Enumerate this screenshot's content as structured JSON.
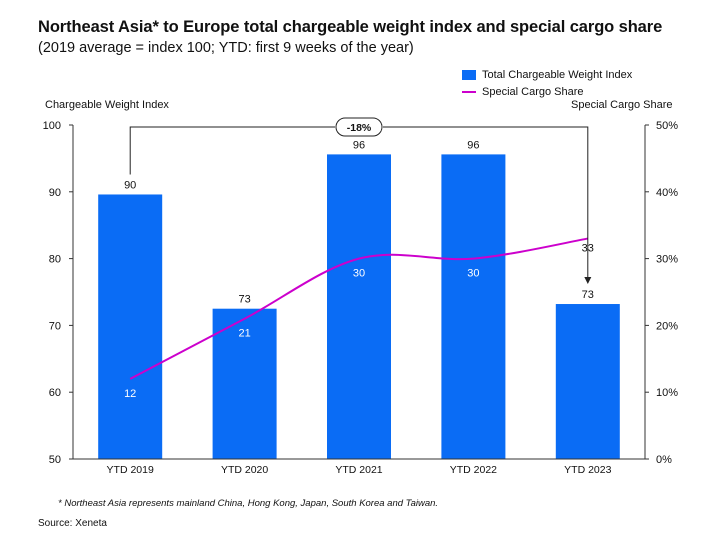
{
  "title": "Northeast Asia* to Europe total chargeable weight index and special cargo share",
  "subtitle": "(2019 average = index 100; YTD: first 9 weeks of the year)",
  "footnote": "* Northeast Asia represents mainland China, Hong Kong, Japan, South Korea and Taiwan.",
  "source": "Source: Xeneta",
  "colors": {
    "bar": "#0a6cf5",
    "line": "#cc00cc",
    "bracket": "#222222"
  },
  "chart_data": {
    "type": "bar",
    "categories": [
      "YTD 2019",
      "YTD 2020",
      "YTD 2021",
      "YTD 2022",
      "YTD 2023"
    ],
    "ylabel": "Chargeable Weight Index",
    "y2label": "Special Cargo Share",
    "ylim": [
      50,
      100
    ],
    "yticks": [
      50,
      60,
      70,
      80,
      90,
      100
    ],
    "y2lim": [
      0,
      50
    ],
    "y2ticks": [
      "0%",
      "10%",
      "20%",
      "30%",
      "40%",
      "50%"
    ],
    "legend_position": "top-right",
    "grid": false,
    "series": [
      {
        "name": "Total Chargeable Weight Index",
        "type": "bar",
        "axis": "left",
        "values": [
          89.6,
          72.5,
          95.6,
          95.6,
          73.2
        ],
        "labels": [
          "90",
          "73",
          "96",
          "96",
          "73"
        ]
      },
      {
        "name": "Special Cargo Share",
        "type": "line",
        "axis": "right",
        "values": [
          12,
          21,
          30,
          30,
          33
        ],
        "labels": [
          "12",
          "21",
          "30",
          "30",
          "33"
        ]
      }
    ],
    "annotation": {
      "text": "-18%",
      "from": "YTD 2019",
      "to": "YTD 2023"
    }
  }
}
